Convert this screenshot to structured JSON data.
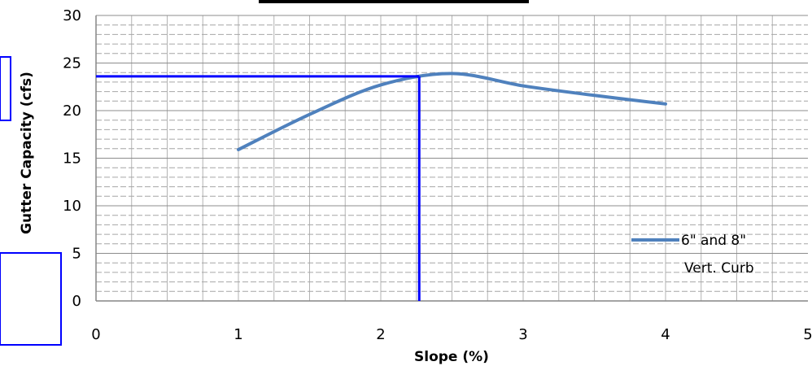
{
  "chart_data": {
    "type": "line",
    "title": "",
    "xlabel": "Slope (%)",
    "ylabel": "Gutter Capacity (cfs)",
    "xlim": [
      0,
      5
    ],
    "ylim": [
      0,
      30
    ],
    "xticks": [
      0,
      1,
      2,
      3,
      4,
      5
    ],
    "yticks": [
      0,
      5,
      10,
      15,
      20,
      25,
      30
    ],
    "grid": true,
    "series": [
      {
        "name": "6\" and 8\" Vert. Curb",
        "color": "#4f81bd",
        "x": [
          1,
          1.5,
          2,
          2.5,
          3,
          3.5,
          4
        ],
        "y": [
          15.9,
          19.6,
          22.7,
          23.9,
          22.6,
          21.6,
          20.7
        ]
      }
    ],
    "legend": {
      "line1": "6\" and 8\"",
      "line2": "Vert. Curb",
      "position": "right"
    },
    "annotations": [
      {
        "type": "reading-line",
        "color": "#0000ff",
        "x": 2.27,
        "y": 23.6
      }
    ]
  }
}
